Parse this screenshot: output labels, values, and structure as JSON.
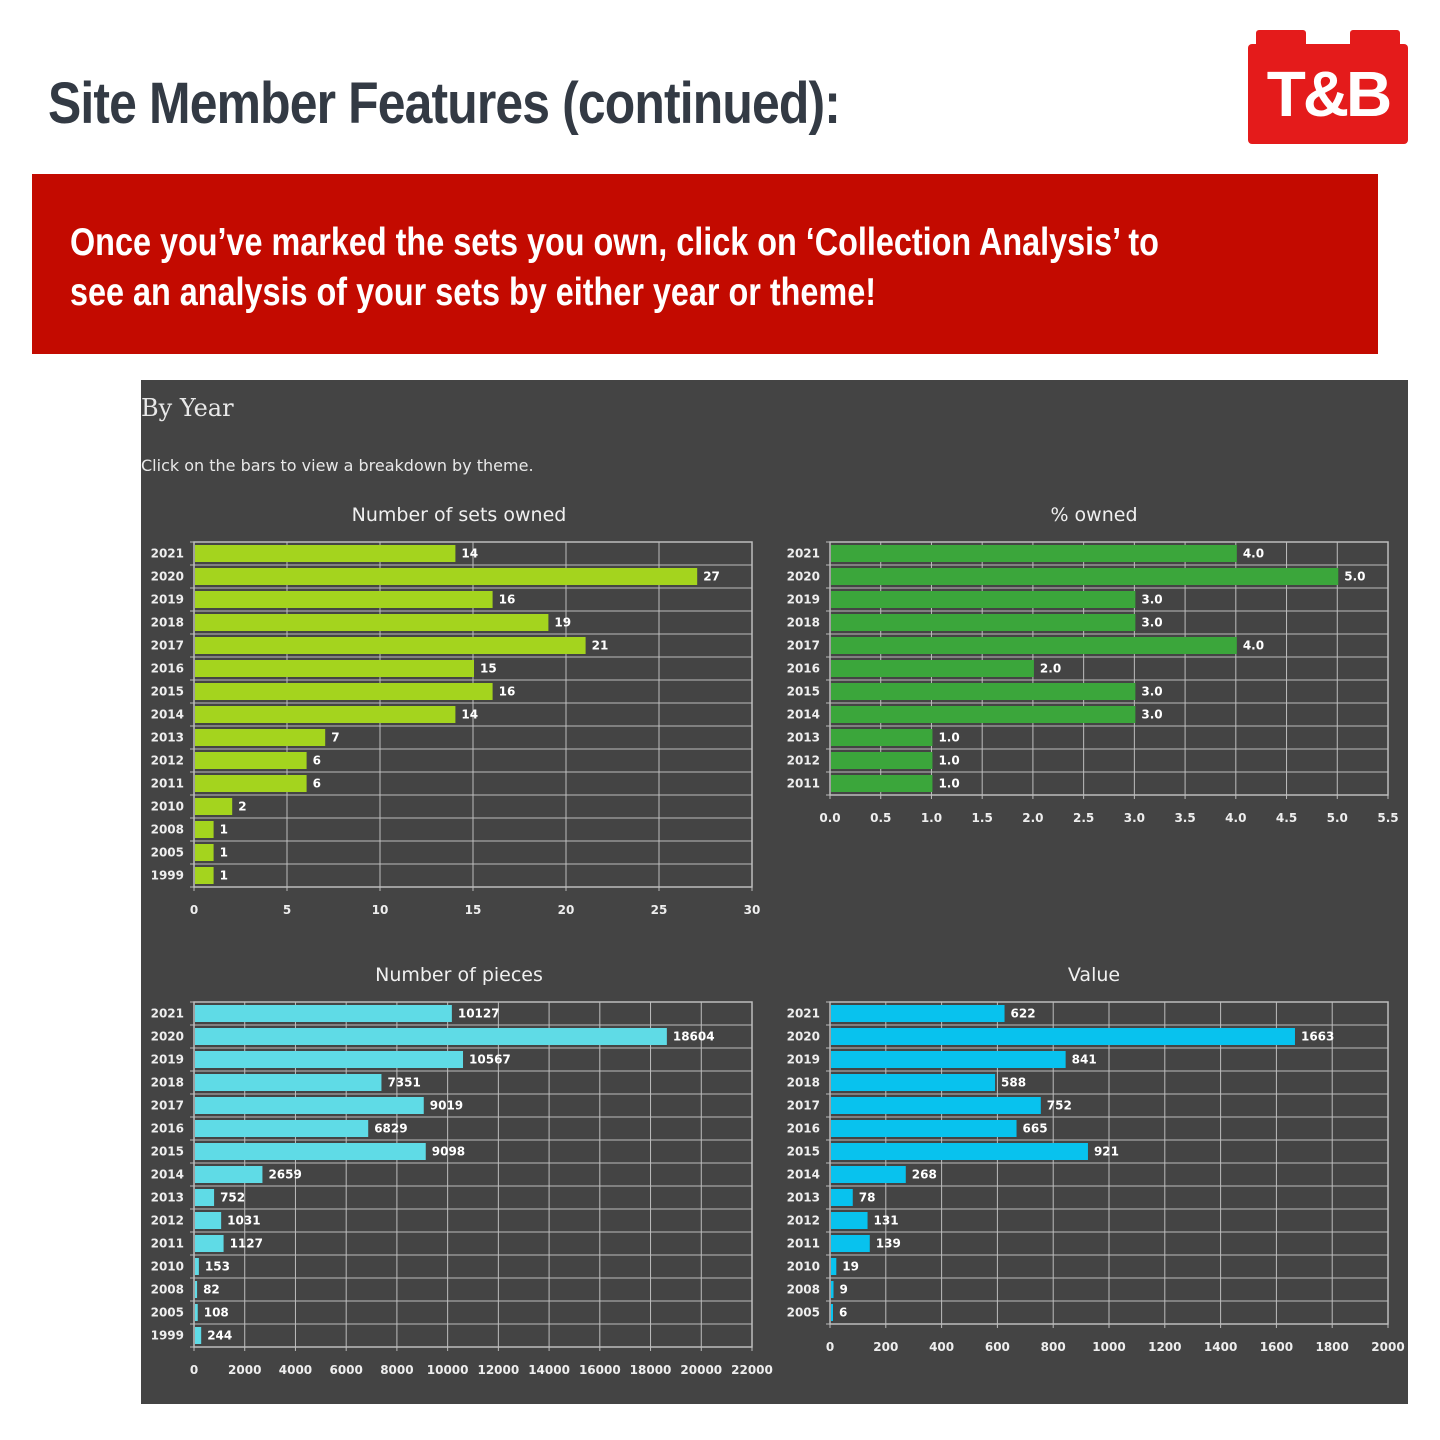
{
  "header": {
    "title": "Site Member Features (continued):",
    "logo_text": "T&B"
  },
  "banner": {
    "text": "Once you’ve marked the sets you own, click on ‘Collection Analysis’ to see an analysis of your sets by either year or theme!"
  },
  "panel": {
    "heading": "By Year",
    "instruction": "Click on the bars to view a breakdown by theme."
  },
  "colors": {
    "brand_red": "#e41b1b",
    "banner_red": "#c30a00",
    "panel_bg": "#444444",
    "sets_bar": "#a4d41e",
    "pct_bar": "#3ba63b",
    "pieces_bar": "#5fdbe6",
    "value_bar": "#08c2ee"
  },
  "chart_data": [
    {
      "type": "bar",
      "orientation": "horizontal",
      "title": "Number of sets owned",
      "categories": [
        "2021",
        "2020",
        "2019",
        "2018",
        "2017",
        "2016",
        "2015",
        "2014",
        "2013",
        "2012",
        "2011",
        "2010",
        "2008",
        "2005",
        "1999"
      ],
      "values": [
        14,
        27,
        16,
        19,
        21,
        15,
        16,
        14,
        7,
        6,
        6,
        2,
        1,
        1,
        1
      ],
      "value_labels": [
        "14",
        "27",
        "16",
        "19",
        "21",
        "15",
        "16",
        "14",
        "7",
        "6",
        "6",
        "2",
        "1",
        "1",
        "1"
      ],
      "xlim": [
        0,
        30
      ],
      "xticks": [
        "0",
        "5",
        "10",
        "15",
        "20",
        "25",
        "30"
      ],
      "color": "#a4d41e",
      "grid": true
    },
    {
      "type": "bar",
      "orientation": "horizontal",
      "title": "% owned",
      "categories": [
        "2021",
        "2020",
        "2019",
        "2018",
        "2017",
        "2016",
        "2015",
        "2014",
        "2013",
        "2012",
        "2011"
      ],
      "values": [
        4.0,
        5.0,
        3.0,
        3.0,
        4.0,
        2.0,
        3.0,
        3.0,
        1.0,
        1.0,
        1.0
      ],
      "value_labels": [
        "4.0",
        "5.0",
        "3.0",
        "3.0",
        "4.0",
        "2.0",
        "3.0",
        "3.0",
        "1.0",
        "1.0",
        "1.0"
      ],
      "xlim": [
        0,
        5.5
      ],
      "xticks": [
        "0.0",
        "0.5",
        "1.0",
        "1.5",
        "2.0",
        "2.5",
        "3.0",
        "3.5",
        "4.0",
        "4.5",
        "5.0",
        "5.5"
      ],
      "color": "#3ba63b",
      "grid": true
    },
    {
      "type": "bar",
      "orientation": "horizontal",
      "title": "Number of pieces",
      "categories": [
        "2021",
        "2020",
        "2019",
        "2018",
        "2017",
        "2016",
        "2015",
        "2014",
        "2013",
        "2012",
        "2011",
        "2010",
        "2008",
        "2005",
        "1999"
      ],
      "values": [
        10127,
        18604,
        10567,
        7351,
        9019,
        6829,
        9098,
        2659,
        752,
        1031,
        1127,
        153,
        82,
        108,
        244
      ],
      "value_labels": [
        "10127",
        "18604",
        "10567",
        "7351",
        "9019",
        "6829",
        "9098",
        "2659",
        "752",
        "1031",
        "1127",
        "153",
        "82",
        "108",
        "244"
      ],
      "xlim": [
        0,
        22000
      ],
      "xticks": [
        "0",
        "2000",
        "4000",
        "6000",
        "8000",
        "10000",
        "12000",
        "14000",
        "16000",
        "18000",
        "20000",
        "22000"
      ],
      "color": "#5fdbe6",
      "grid": true
    },
    {
      "type": "bar",
      "orientation": "horizontal",
      "title": "Value",
      "categories": [
        "2021",
        "2020",
        "2019",
        "2018",
        "2017",
        "2016",
        "2015",
        "2014",
        "2013",
        "2012",
        "2011",
        "2010",
        "2008",
        "2005"
      ],
      "values": [
        622,
        1663,
        841,
        588,
        752,
        665,
        921,
        268,
        78,
        131,
        139,
        19,
        9,
        6
      ],
      "value_labels": [
        "622",
        "1663",
        "841",
        "588",
        "752",
        "665",
        "921",
        "268",
        "78",
        "131",
        "139",
        "19",
        "9",
        "6"
      ],
      "xlim": [
        0,
        2000
      ],
      "xticks": [
        "0",
        "200",
        "400",
        "600",
        "800",
        "1000",
        "1200",
        "1400",
        "1600",
        "1800",
        "2000"
      ],
      "color": "#08c2ee",
      "grid": true
    }
  ]
}
